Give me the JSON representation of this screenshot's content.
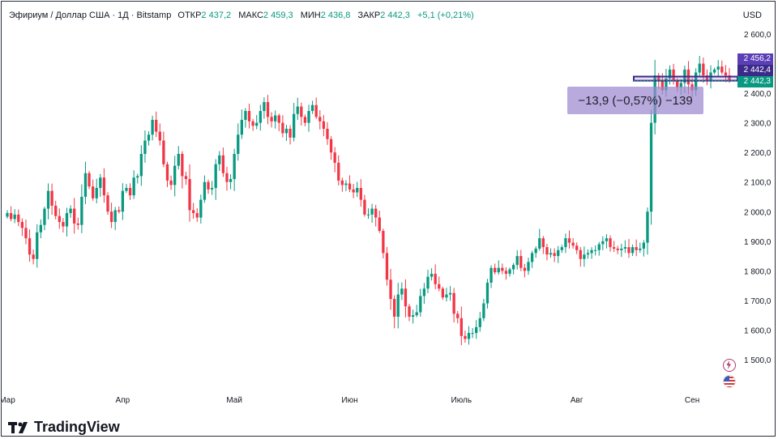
{
  "header": {
    "symbol": "Эфириум / Доллар США · 1Д · Bitstamp",
    "open_label": "ОТКР",
    "open_value": "2 437,2",
    "high_label": "МАКС",
    "high_value": "2 459,3",
    "low_label": "МИН",
    "low_value": "2 436,8",
    "close_label": "ЗАКР",
    "close_value": "2 442,3",
    "change": "+5,1 (+0,21%)"
  },
  "currency": "USD",
  "brand": "TradingView",
  "measure_text": "−13,9 (−0,57%) −139",
  "price_tags": [
    {
      "text": "2 456,2",
      "color": "#5b3fb6"
    },
    {
      "text": "2 442,4",
      "color": "#3c2a8a"
    },
    {
      "text": "2 442,3",
      "color": "#089981"
    }
  ],
  "icons": [
    "lightning-icon",
    "us-flag-icon"
  ],
  "colors": {
    "up": "#089981",
    "down": "#f23645",
    "measure": "#9c89d0"
  },
  "chart_data": {
    "type": "candlestick",
    "title": "",
    "xlabel": "",
    "ylabel": "",
    "y_ticks": [
      1500,
      1600,
      1700,
      1800,
      1900,
      2000,
      2100,
      2200,
      2300,
      2400,
      2500,
      2600
    ],
    "y_tick_labels": [
      "1 500,0",
      "1 600,0",
      "1 700,0",
      "1 800,0",
      "1 900,0",
      "2 000,0",
      "2 100,0",
      "2 200,0",
      "2 300,0",
      "2 400,0",
      "2 500,0",
      "2 600,0"
    ],
    "ylim": [
      1430,
      2640
    ],
    "month_labels": [
      {
        "label": "Мар",
        "day": 0
      },
      {
        "label": "Апр",
        "day": 31
      },
      {
        "label": "Май",
        "day": 61
      },
      {
        "label": "Июн",
        "day": 92
      },
      {
        "label": "Июль",
        "day": 122
      },
      {
        "label": "Авг",
        "day": 153
      },
      {
        "label": "Сен",
        "day": 184
      }
    ],
    "start_date": "2023-03-01",
    "close": [
      1995,
      1975,
      1990,
      1965,
      1945,
      1910,
      1855,
      1840,
      1930,
      1955,
      2010,
      2070,
      2020,
      1985,
      1965,
      1950,
      1995,
      2010,
      1960,
      1955,
      2050,
      2130,
      2085,
      2045,
      2080,
      2115,
      2055,
      2000,
      1965,
      2005,
      2000,
      2070,
      2080,
      2055,
      2115,
      2120,
      2195,
      2240,
      2260,
      2310,
      2270,
      2240,
      2160,
      2105,
      2090,
      2155,
      2195,
      2120,
      2110,
      2005,
      1995,
      1980,
      2040,
      2100,
      2075,
      2080,
      2160,
      2190,
      2130,
      2100,
      2110,
      2195,
      2260,
      2310,
      2340,
      2305,
      2290,
      2300,
      2340,
      2370,
      2320,
      2305,
      2325,
      2300,
      2265,
      2280,
      2250,
      2330,
      2355,
      2320,
      2300,
      2340,
      2360,
      2320,
      2305,
      2280,
      2245,
      2200,
      2165,
      2105,
      2090,
      2095,
      2075,
      2065,
      2080,
      2040,
      1990,
      1990,
      2010,
      1980,
      1935,
      1860,
      1770,
      1705,
      1645,
      1720,
      1740,
      1680,
      1645,
      1650,
      1660,
      1715,
      1740,
      1780,
      1790,
      1755,
      1740,
      1710,
      1720,
      1725,
      1655,
      1640,
      1580,
      1570,
      1590,
      1590,
      1610,
      1640,
      1690,
      1760,
      1810,
      1795,
      1810,
      1800,
      1790,
      1805,
      1820,
      1850,
      1810,
      1800,
      1830,
      1860,
      1875,
      1910,
      1880,
      1855,
      1860,
      1850,
      1870,
      1880,
      1910,
      1895,
      1885,
      1870,
      1840,
      1855,
      1860,
      1870,
      1870,
      1890,
      1900,
      1910,
      1880,
      1875,
      1870,
      1875,
      1880,
      1860,
      1880,
      1870,
      1875,
      1895,
      2000,
      2300,
      2460,
      2440,
      2410,
      2450,
      2480,
      2440,
      2420,
      2435,
      2480,
      2430,
      2410,
      2470,
      2500,
      2460,
      2440,
      2470,
      2480,
      2490,
      2470,
      2460,
      2442
    ]
  }
}
